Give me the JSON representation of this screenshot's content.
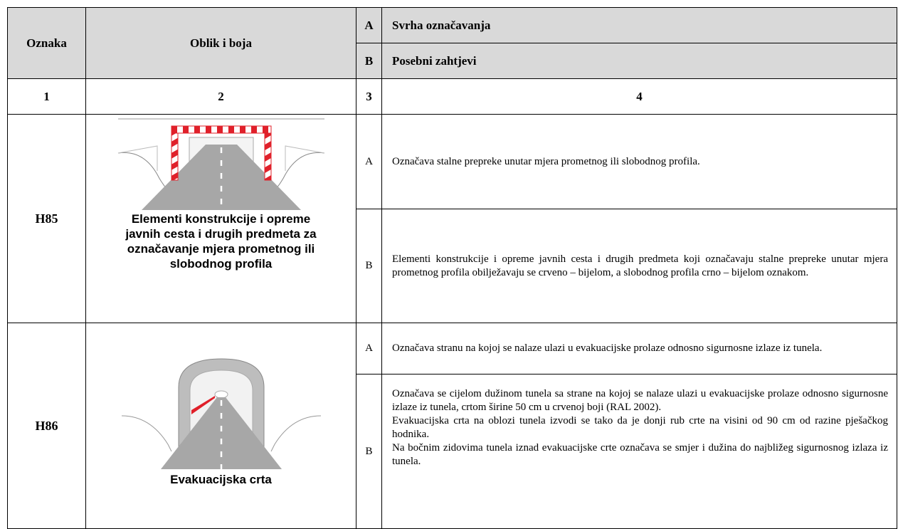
{
  "header": {
    "code": "Oznaka",
    "shape": "Oblik i boja",
    "a_letter": "A",
    "a_label": "Svrha označavanja",
    "b_letter": "B",
    "b_label": "Posebni zahtjevi"
  },
  "numbers": [
    "1",
    "2",
    "3",
    "4"
  ],
  "signs": [
    {
      "code": "H85",
      "caption": "Elementi konstrukcije i opreme javnih cesta i drugih predmeta za označavanje mjera prometnog ili slobodnog profila",
      "rows": [
        {
          "letter": "A",
          "paragraphs": [
            "Označava stalne prepreke unutar mjera prometnog ili slobodnog profila."
          ]
        },
        {
          "letter": "B",
          "paragraphs": [
            "Elementi konstrukcije i opreme javnih cesta i drugih predmeta koji označavaju stalne prepreke unutar mjera prometnog profila obilježavaju se crveno – bijelom, a slobodnog profila crno – bijelom oznakom."
          ]
        }
      ]
    },
    {
      "code": "H86",
      "caption": "Evakuacijska crta",
      "rows": [
        {
          "letter": "A",
          "paragraphs": [
            "Označava stranu na kojoj se nalaze ulazi u evakuacijske prolaze odnosno sigurnosne izlaze iz tunela."
          ]
        },
        {
          "letter": "B",
          "paragraphs": [
            "Označava se cijelom dužinom tunela sa strane na kojoj se nalaze ulazi u evakuacijske prolaze odnosno sigurnosne izlaze iz tunela, crtom širine 50 cm u crvenoj boji (RAL 2002).",
            "Evakuacijska crta na oblozi tunela izvodi se tako da je donji rub crte na visini od 90 cm od razine pješačkog hodnika.",
            "Na bočnim zidovima tunela iznad evakuacijske crte označava se smjer i dužina do najbližeg sigurnosnog izlaza iz tunela."
          ]
        }
      ]
    }
  ]
}
